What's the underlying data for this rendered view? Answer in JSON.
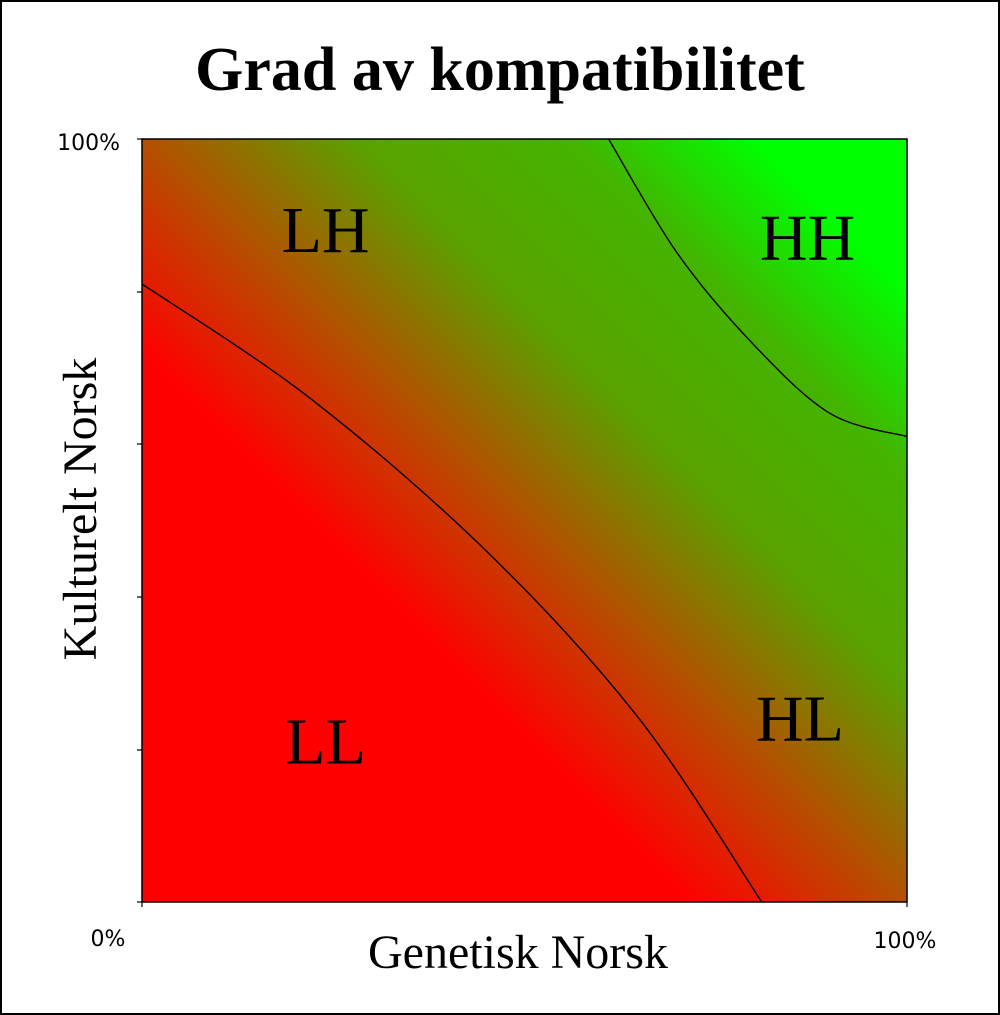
{
  "chart_data": {
    "type": "heatmap",
    "title": "Grad av kompatibilitet",
    "xlabel": "Genetisk Norsk",
    "ylabel": "Kulturelt Norsk",
    "xlim": [
      0,
      100
    ],
    "ylim": [
      0,
      100
    ],
    "x_ticks": [
      "0%",
      "100%"
    ],
    "y_ticks": [
      "100%"
    ],
    "grid": false,
    "colors": {
      "low": "#ff0000",
      "high": "#00ff00",
      "mid": "#55aa00"
    },
    "regions": [
      {
        "label": "LH",
        "x": 24,
        "y": 88
      },
      {
        "label": "HH",
        "x": 87,
        "y": 87
      },
      {
        "label": "LL",
        "x": 24,
        "y": 21
      },
      {
        "label": "HL",
        "x": 86,
        "y": 24
      }
    ],
    "boundaries": [
      {
        "points": [
          [
            0,
            81
          ],
          [
            22,
            66
          ],
          [
            45,
            46
          ],
          [
            65,
            24
          ],
          [
            81,
            0
          ]
        ]
      },
      {
        "points": [
          [
            61,
            100
          ],
          [
            70,
            85
          ],
          [
            80,
            73
          ],
          [
            90,
            64
          ],
          [
            100,
            61
          ]
        ]
      }
    ]
  }
}
